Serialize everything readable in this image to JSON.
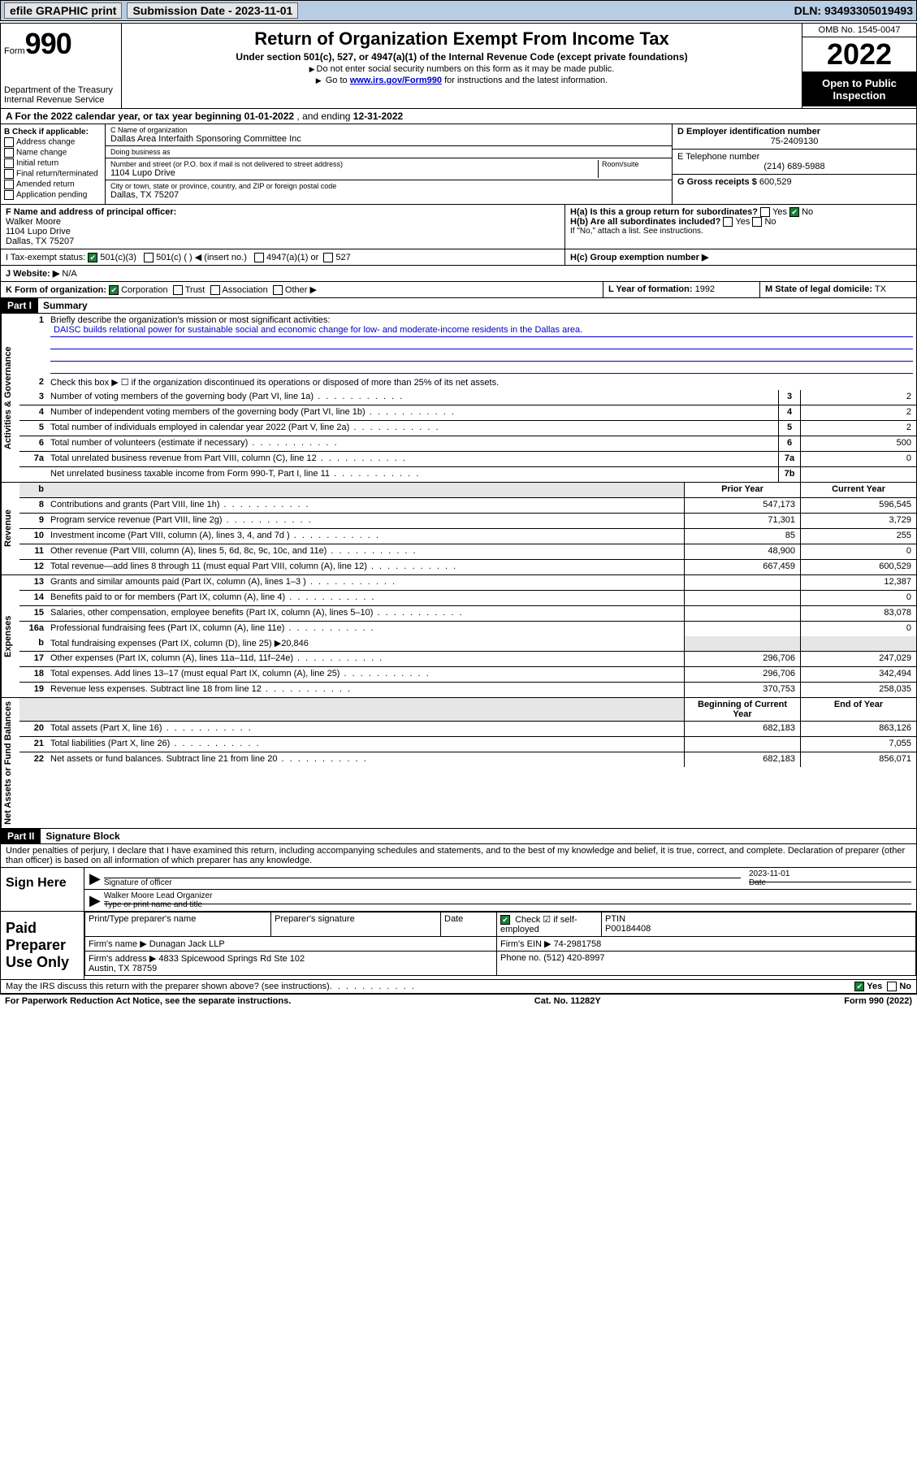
{
  "topbar": {
    "efile_label": "efile GRAPHIC print",
    "submission_label": "Submission Date - 2023-11-01",
    "dln_label": "DLN: 93493305019493"
  },
  "header": {
    "form_prefix": "Form",
    "form_number": "990",
    "dept": "Department of the Treasury\nInternal Revenue Service",
    "title": "Return of Organization Exempt From Income Tax",
    "subtitle": "Under section 501(c), 527, or 4947(a)(1) of the Internal Revenue Code (except private foundations)",
    "note1": "Do not enter social security numbers on this form as it may be made public.",
    "note2_pre": "Go to ",
    "note2_link": "www.irs.gov/Form990",
    "note2_post": " for instructions and the latest information.",
    "omb": "OMB No. 1545-0047",
    "year": "2022",
    "open": "Open to Public Inspection"
  },
  "row_a": {
    "text_pre": "A For the 2022 calendar year, or tax year beginning ",
    "beg": "01-01-2022",
    "mid": " , and ending ",
    "end": "12-31-2022"
  },
  "col_b": {
    "header": "B Check if applicable:",
    "items": [
      "Address change",
      "Name change",
      "Initial return",
      "Final return/terminated",
      "Amended return",
      "Application pending"
    ]
  },
  "col_c": {
    "name_lbl": "C Name of organization",
    "name": "Dallas Area Interfaith Sponsoring Committee Inc",
    "dba_lbl": "Doing business as",
    "dba": "",
    "addr_lbl": "Number and street (or P.O. box if mail is not delivered to street address)",
    "room_lbl": "Room/suite",
    "addr": "1104 Lupo Drive",
    "city_lbl": "City or town, state or province, country, and ZIP or foreign postal code",
    "city": "Dallas, TX  75207"
  },
  "col_d": {
    "ein_lbl": "D Employer identification number",
    "ein": "75-2409130",
    "phone_lbl": "E Telephone number",
    "phone": "(214) 689-5988",
    "gross_lbl": "G Gross receipts $",
    "gross": "600,529"
  },
  "row_f": {
    "lbl": "F Name and address of principal officer:",
    "name": "Walker Moore",
    "addr1": "1104 Lupo Drive",
    "addr2": "Dallas, TX  75207"
  },
  "row_h": {
    "ha": "H(a)  Is this a group return for subordinates?",
    "ha_ans": "No",
    "hb": "H(b)  Are all subordinates included?",
    "hb_note": "If \"No,\" attach a list. See instructions.",
    "hc": "H(c)  Group exemption number ▶"
  },
  "row_i": {
    "lbl": "I   Tax-exempt status:",
    "opt1": "501(c)(3)",
    "opt2": "501(c) (   ) ◀ (insert no.)",
    "opt3": "4947(a)(1) or",
    "opt4": "527"
  },
  "row_j": {
    "lbl": "J   Website: ▶",
    "val": "N/A"
  },
  "row_k": {
    "lbl": "K Form of organization:",
    "opts": [
      "Corporation",
      "Trust",
      "Association",
      "Other ▶"
    ]
  },
  "row_l": {
    "lbl": "L Year of formation:",
    "val": "1992"
  },
  "row_m": {
    "lbl": "M State of legal domicile:",
    "val": "TX"
  },
  "part1": {
    "hdr": "Part I",
    "title": "Summary",
    "line1_lbl": "Briefly describe the organization's mission or most significant activities:",
    "line1_val": "DAISC builds relational power for sustainable social and economic change for low- and moderate-income residents in the Dallas area.",
    "line2": "Check this box ▶ ☐  if the organization discontinued its operations or disposed of more than 25% of its net assets.",
    "vlabel_gov": "Activities & Governance",
    "vlabel_rev": "Revenue",
    "vlabel_exp": "Expenses",
    "vlabel_net": "Net Assets or Fund Balances",
    "lines_gov": [
      {
        "n": "3",
        "d": "Number of voting members of the governing body (Part VI, line 1a)",
        "box": "3",
        "v": "2"
      },
      {
        "n": "4",
        "d": "Number of independent voting members of the governing body (Part VI, line 1b)",
        "box": "4",
        "v": "2"
      },
      {
        "n": "5",
        "d": "Total number of individuals employed in calendar year 2022 (Part V, line 2a)",
        "box": "5",
        "v": "2"
      },
      {
        "n": "6",
        "d": "Total number of volunteers (estimate if necessary)",
        "box": "6",
        "v": "500"
      },
      {
        "n": "7a",
        "d": "Total unrelated business revenue from Part VIII, column (C), line 12",
        "box": "7a",
        "v": "0"
      },
      {
        "n": "",
        "d": "Net unrelated business taxable income from Form 990-T, Part I, line 11",
        "box": "7b",
        "v": ""
      }
    ],
    "col_prior": "Prior Year",
    "col_current": "Current Year",
    "col_beg": "Beginning of Current Year",
    "col_end": "End of Year",
    "lines_rev": [
      {
        "n": "8",
        "d": "Contributions and grants (Part VIII, line 1h)",
        "p": "547,173",
        "c": "596,545"
      },
      {
        "n": "9",
        "d": "Program service revenue (Part VIII, line 2g)",
        "p": "71,301",
        "c": "3,729"
      },
      {
        "n": "10",
        "d": "Investment income (Part VIII, column (A), lines 3, 4, and 7d )",
        "p": "85",
        "c": "255"
      },
      {
        "n": "11",
        "d": "Other revenue (Part VIII, column (A), lines 5, 6d, 8c, 9c, 10c, and 11e)",
        "p": "48,900",
        "c": "0"
      },
      {
        "n": "12",
        "d": "Total revenue—add lines 8 through 11 (must equal Part VIII, column (A), line 12)",
        "p": "667,459",
        "c": "600,529"
      }
    ],
    "lines_exp": [
      {
        "n": "13",
        "d": "Grants and similar amounts paid (Part IX, column (A), lines 1–3 )",
        "p": "",
        "c": "12,387"
      },
      {
        "n": "14",
        "d": "Benefits paid to or for members (Part IX, column (A), line 4)",
        "p": "",
        "c": "0"
      },
      {
        "n": "15",
        "d": "Salaries, other compensation, employee benefits (Part IX, column (A), lines 5–10)",
        "p": "",
        "c": "83,078"
      },
      {
        "n": "16a",
        "d": "Professional fundraising fees (Part IX, column (A), line 11e)",
        "p": "",
        "c": "0"
      }
    ],
    "line_b": {
      "n": "b",
      "d": "Total fundraising expenses (Part IX, column (D), line 25) ▶20,846"
    },
    "lines_exp2": [
      {
        "n": "17",
        "d": "Other expenses (Part IX, column (A), lines 11a–11d, 11f–24e)",
        "p": "296,706",
        "c": "247,029"
      },
      {
        "n": "18",
        "d": "Total expenses. Add lines 13–17 (must equal Part IX, column (A), line 25)",
        "p": "296,706",
        "c": "342,494"
      },
      {
        "n": "19",
        "d": "Revenue less expenses. Subtract line 18 from line 12",
        "p": "370,753",
        "c": "258,035"
      }
    ],
    "lines_net": [
      {
        "n": "20",
        "d": "Total assets (Part X, line 16)",
        "p": "682,183",
        "c": "863,126"
      },
      {
        "n": "21",
        "d": "Total liabilities (Part X, line 26)",
        "p": "",
        "c": "7,055"
      },
      {
        "n": "22",
        "d": "Net assets or fund balances. Subtract line 21 from line 20",
        "p": "682,183",
        "c": "856,071"
      }
    ]
  },
  "part2": {
    "hdr": "Part II",
    "title": "Signature Block",
    "decl": "Under penalties of perjury, I declare that I have examined this return, including accompanying schedules and statements, and to the best of my knowledge and belief, it is true, correct, and complete. Declaration of preparer (other than officer) is based on all information of which preparer has any knowledge.",
    "sign_here": "Sign Here",
    "sig_officer_lbl": "Signature of officer",
    "sig_date": "2023-11-01",
    "sig_date_lbl": "Date",
    "sig_name": "Walker Moore Lead Organizer",
    "sig_name_lbl": "Type or print name and title",
    "paid_hdr": "Paid Preparer Use Only",
    "prep_name_lbl": "Print/Type preparer's name",
    "prep_sig_lbl": "Preparer's signature",
    "prep_date_lbl": "Date",
    "prep_check_lbl": "Check ☑ if self-employed",
    "ptin_lbl": "PTIN",
    "ptin": "P00184408",
    "firm_name_lbl": "Firm's name    ▶",
    "firm_name": "Dunagan Jack LLP",
    "firm_ein_lbl": "Firm's EIN ▶",
    "firm_ein": "74-2981758",
    "firm_addr_lbl": "Firm's address ▶",
    "firm_addr": "4833 Spicewood Springs Rd Ste 102\nAustin, TX  78759",
    "firm_phone_lbl": "Phone no.",
    "firm_phone": "(512) 420-8997",
    "discuss": "May the IRS discuss this return with the preparer shown above? (see instructions)",
    "discuss_ans": "Yes"
  },
  "footer": {
    "left": "For Paperwork Reduction Act Notice, see the separate instructions.",
    "mid": "Cat. No. 11282Y",
    "right": "Form 990 (2022)"
  }
}
